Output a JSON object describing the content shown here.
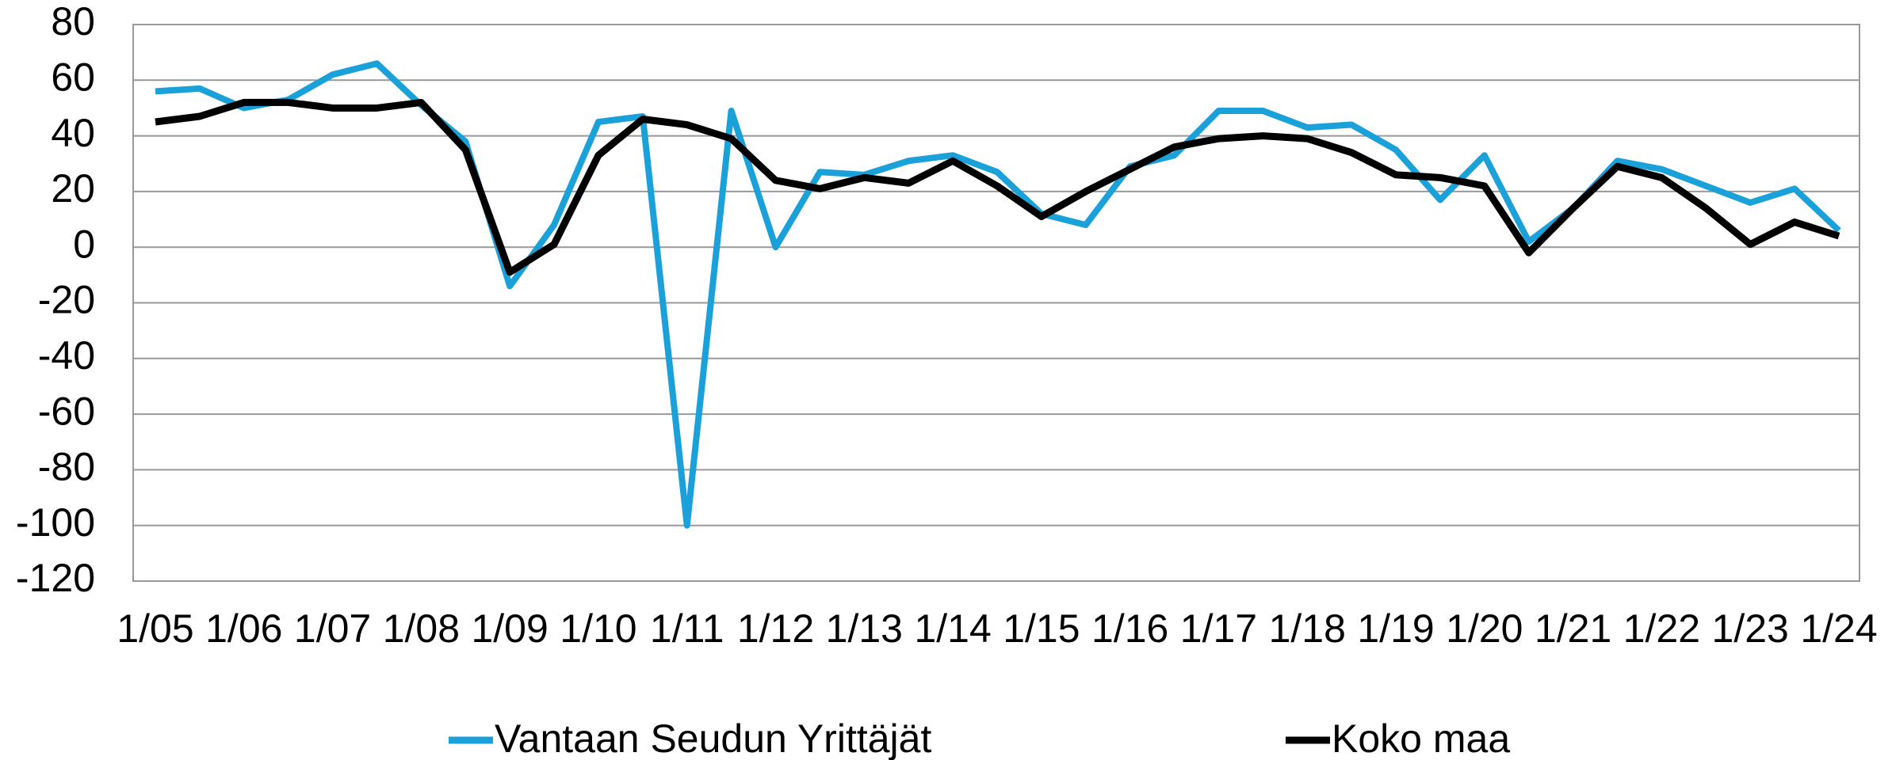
{
  "chart_data": {
    "type": "line",
    "categories": [
      "1/05",
      null,
      "1/06",
      null,
      "1/07",
      null,
      "1/08",
      null,
      "1/09",
      null,
      "1/10",
      null,
      "1/11",
      null,
      "1/12",
      null,
      "1/13",
      null,
      "1/14",
      null,
      "1/15",
      null,
      "1/16",
      null,
      "1/17",
      null,
      "1/18",
      null,
      "1/19",
      null,
      "1/20",
      null,
      "1/21",
      null,
      "1/22",
      null,
      "1/23",
      null,
      "1/24"
    ],
    "series": [
      {
        "name": "Vantaan Seudun Yrittäjät",
        "color": "#1ba1d9",
        "values": [
          56,
          57,
          50,
          53,
          62,
          66,
          51,
          38,
          -14,
          8,
          45,
          47,
          -100,
          49,
          0,
          27,
          26,
          31,
          33,
          27,
          12,
          8,
          29,
          33,
          49,
          49,
          43,
          44,
          35,
          17,
          33,
          2,
          14,
          31,
          28,
          22,
          16,
          21,
          6
        ]
      },
      {
        "name": "Koko maa",
        "color": "#000000",
        "values": [
          45,
          47,
          52,
          52,
          50,
          50,
          52,
          35,
          -9,
          1,
          33,
          46,
          44,
          39,
          24,
          21,
          25,
          23,
          31,
          22,
          11,
          20,
          28,
          36,
          39,
          40,
          39,
          34,
          26,
          25,
          22,
          -2,
          14,
          29,
          25,
          14,
          1,
          9,
          4
        ]
      }
    ],
    "ylim": [
      -120,
      80
    ],
    "yticks": [
      -120,
      -100,
      -80,
      -60,
      -40,
      -20,
      0,
      20,
      40,
      60,
      80
    ],
    "grid": true,
    "legend": "bottom"
  }
}
